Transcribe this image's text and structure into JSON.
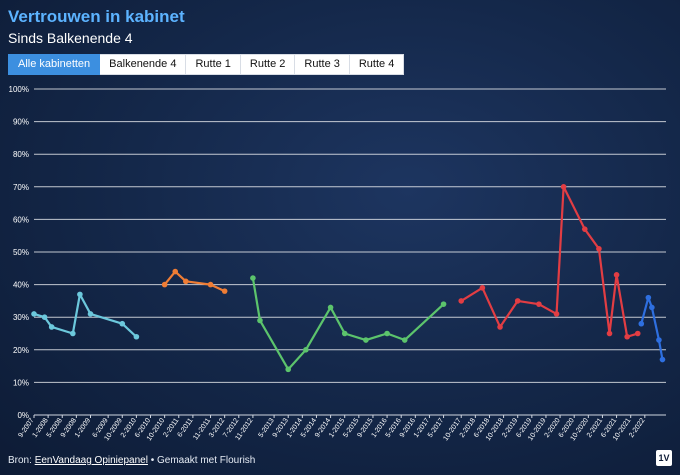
{
  "header": {
    "title": "Vertrouwen in kabinet",
    "subtitle": "Sinds Balkenende 4"
  },
  "tabs": [
    {
      "label": "Alle kabinetten",
      "active": true
    },
    {
      "label": "Balkenende 4",
      "active": false
    },
    {
      "label": "Rutte 1",
      "active": false
    },
    {
      "label": "Rutte 2",
      "active": false
    },
    {
      "label": "Rutte 3",
      "active": false
    },
    {
      "label": "Rutte 4",
      "active": false
    }
  ],
  "footer": {
    "prefix": "Bron: ",
    "source_link": "EenVandaag Opiniepanel",
    "suffix": " • Gemaakt met Flourish"
  },
  "logo_text": "1V",
  "colors": {
    "title": "#5cb3ff",
    "active_tab": "#3c8fe0",
    "balkenende4": "#6cc8dc",
    "rutte1": "#ef7d35",
    "rutte2": "#5cc46c",
    "rutte3": "#e23d43",
    "rutte4": "#2e6fe0"
  },
  "chart_data": {
    "type": "line",
    "ylim": [
      0,
      100
    ],
    "y_ticks": [
      "0%",
      "10%",
      "20%",
      "30%",
      "40%",
      "50%",
      "60%",
      "70%",
      "80%",
      "90%",
      "100%"
    ],
    "x_ticks": [
      "9-2007",
      "1-2008",
      "5-2008",
      "9-2008",
      "1-2009",
      "6-2009",
      "10-2009",
      "2-2010",
      "6-2010",
      "10-2010",
      "2-2011",
      "6-2011",
      "11-2011",
      "3-2012",
      "7-2012",
      "11-2012",
      "5-2013",
      "9-2013",
      "1-2014",
      "5-2014",
      "9-2014",
      "1-2015",
      "5-2015",
      "9-2015",
      "1-2016",
      "5-2016",
      "9-2016",
      "1-2017",
      "5-2017",
      "10-2017",
      "2-2018",
      "6-2018",
      "10-2018",
      "2-2019",
      "6-2019",
      "10-2019",
      "2-2020",
      "6-2020",
      "10-2020",
      "2-2021",
      "6-2021",
      "10-2021",
      "2-2022"
    ],
    "grid": true,
    "series": [
      {
        "name": "Balkenende 4",
        "color": "#6cc8dc",
        "x": [
          "2007-09",
          "2007-12",
          "2008-02",
          "2008-08",
          "2008-10",
          "2009-01",
          "2009-10",
          "2010-02"
        ],
        "y": [
          31,
          30,
          27,
          25,
          37,
          31,
          28,
          24
        ]
      },
      {
        "name": "Rutte 1",
        "color": "#ef7d35",
        "x": [
          "2010-10",
          "2011-01",
          "2011-04",
          "2011-11",
          "2012-03"
        ],
        "y": [
          40,
          44,
          41,
          40,
          38
        ]
      },
      {
        "name": "Rutte 2",
        "color": "#5cc46c",
        "x": [
          "2012-11",
          "2013-01",
          "2013-09",
          "2014-02",
          "2014-09",
          "2015-01",
          "2015-07",
          "2016-01",
          "2016-06",
          "2017-05"
        ],
        "y": [
          42,
          29,
          14,
          20,
          33,
          25,
          23,
          25,
          23,
          34
        ]
      },
      {
        "name": "Rutte 3",
        "color": "#e23d43",
        "x": [
          "2017-10",
          "2018-04",
          "2018-09",
          "2019-02",
          "2019-08",
          "2020-01",
          "2020-03",
          "2020-09",
          "2021-01",
          "2021-04",
          "2021-06",
          "2021-09",
          "2021-12"
        ],
        "y": [
          35,
          39,
          27,
          35,
          34,
          31,
          70,
          57,
          51,
          25,
          43,
          24,
          25
        ]
      },
      {
        "name": "Rutte 4",
        "color": "#2e6fe0",
        "x": [
          "2022-01",
          "2022-03",
          "2022-04",
          "2022-06",
          "2022-07"
        ],
        "y": [
          28,
          36,
          33,
          23,
          17
        ]
      }
    ]
  }
}
